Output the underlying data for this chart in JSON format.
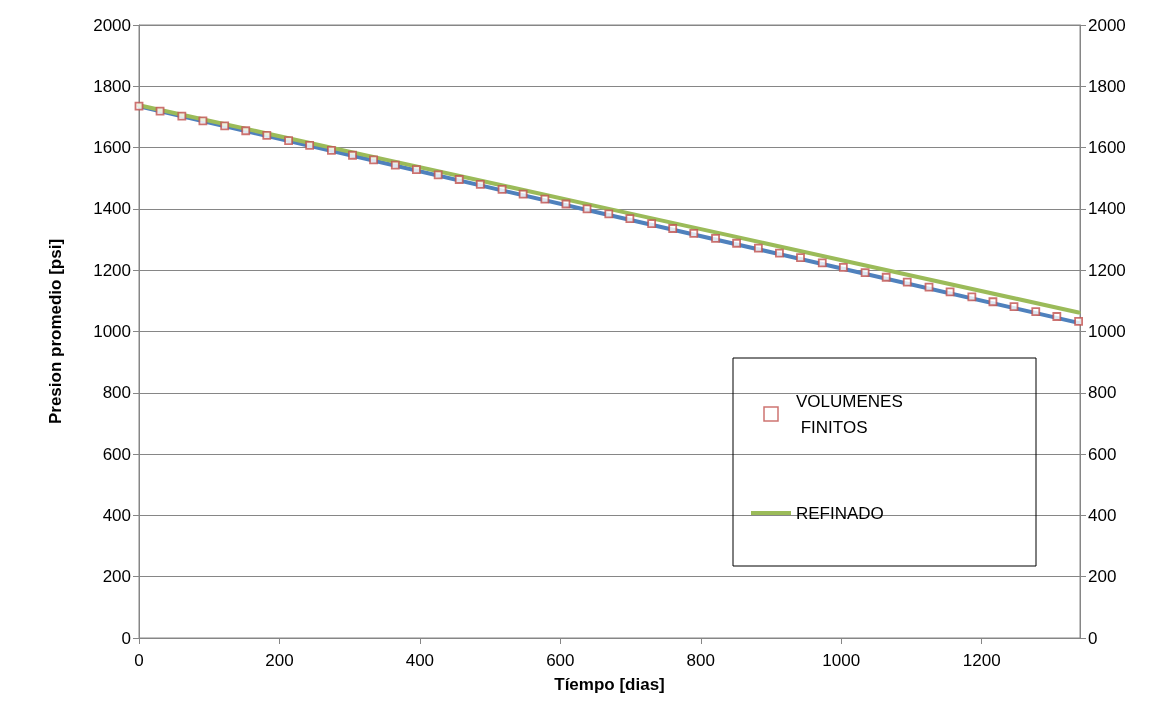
{
  "chart_data": {
    "type": "line",
    "xlabel": "Tíempo [dias]",
    "ylabel": "Presion promedio [psi]",
    "xlim": [
      0,
      1340
    ],
    "xticks": [
      0,
      200,
      400,
      600,
      800,
      1000,
      1200
    ],
    "ylim": [
      0,
      2000
    ],
    "yticks": [
      0,
      200,
      400,
      600,
      800,
      1000,
      1200,
      1400,
      1600,
      1800,
      2000
    ],
    "y2lim": [
      0,
      2000
    ],
    "y2ticks": [
      0,
      200,
      400,
      600,
      800,
      1000,
      1200,
      1400,
      1600,
      1800,
      2000
    ],
    "grid": "y",
    "legend": "right",
    "line_style": "solid",
    "series": [
      {
        "color": "#4f81bd",
        "marker": "none",
        "x": [
          0,
          335,
          669,
          1004,
          1338
        ],
        "values": [
          1735,
          1557,
          1380,
          1204,
          1028
        ]
      },
      {
        "type": "scatter",
        "name": "VOLUMENES FINITOS",
        "color": "#c0504d",
        "marker": "square",
        "x": [
          0,
          30,
          61,
          91,
          122,
          152,
          182,
          213,
          243,
          274,
          304,
          334,
          365,
          395,
          426,
          456,
          486,
          517,
          547,
          578,
          608,
          638,
          669,
          699,
          730,
          760,
          790,
          821,
          851,
          882,
          912,
          942,
          973,
          1003,
          1034,
          1064,
          1094,
          1125,
          1155,
          1186,
          1216,
          1246,
          1277,
          1307,
          1338
        ],
        "values": [
          1735,
          1719,
          1703,
          1687,
          1671,
          1655,
          1640,
          1623,
          1607,
          1591,
          1575,
          1560,
          1543,
          1528,
          1511,
          1496,
          1480,
          1464,
          1448,
          1432,
          1416,
          1400,
          1384,
          1368,
          1352,
          1336,
          1320,
          1304,
          1288,
          1272,
          1256,
          1241,
          1224,
          1209,
          1192,
          1177,
          1161,
          1145,
          1129,
          1113,
          1097,
          1081,
          1065,
          1049,
          1033
        ]
      },
      {
        "name": "REFINADO",
        "color": "#9bbb59",
        "marker": "none",
        "x": [
          0,
          335,
          669,
          1004,
          1338
        ],
        "values": [
          1738,
          1569,
          1400,
          1231,
          1062
        ]
      }
    ]
  }
}
